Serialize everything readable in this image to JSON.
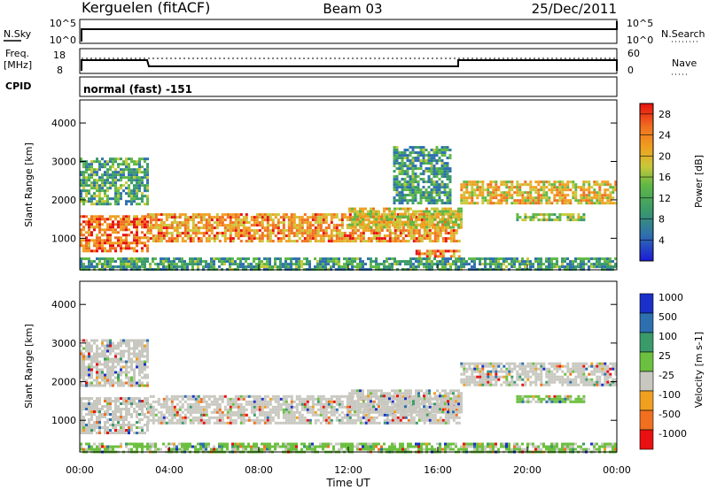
{
  "header": {
    "station": "Kerguelen (fitACF)",
    "beam": "Beam 03",
    "date": "25/Dec/2011"
  },
  "top_panels": {
    "nsky_label": "N.Sky",
    "nsky_ticks": [
      "10^5",
      "10^0"
    ],
    "nsearch_label": "N.Search",
    "nsearch_ticks": [
      "10^5",
      "10^0"
    ],
    "freq_label_1": "Freq.",
    "freq_label_2": "[MHz]",
    "freq_ticks": [
      "18",
      "8"
    ],
    "nave_label": "Nave",
    "nave_ticks": [
      "60",
      "0"
    ],
    "cpid_label": "CPID",
    "cpid_text": "normal (fast) -151"
  },
  "chart_data": [
    {
      "type": "heatmap",
      "name": "power",
      "ylabel": "Slant Range [km]",
      "ylim": [
        180,
        4600
      ],
      "yticks": [
        1000,
        2000,
        3000,
        4000
      ],
      "xlabel": "Time UT",
      "xlim_hours": [
        0,
        24
      ],
      "xticks": [
        "00:00",
        "04:00",
        "08:00",
        "12:00",
        "16:00",
        "20:00",
        "00:00"
      ],
      "colorbar": {
        "label": "Power [dB]",
        "ticks": [
          "4",
          "8",
          "12",
          "16",
          "20",
          "24",
          "28"
        ],
        "colors": [
          "#1a1ad6",
          "#2f6fb0",
          "#3a9a6a",
          "#5fb845",
          "#c8c83a",
          "#f0a020",
          "#f07020",
          "#e81010"
        ]
      },
      "regions": [
        {
          "t0": 0.0,
          "t1": 3.0,
          "r0": 700,
          "r1": 1600,
          "level": 0.85
        },
        {
          "t0": 0.0,
          "t1": 3.0,
          "r0": 1900,
          "r1": 3100,
          "level": 0.35
        },
        {
          "t0": 3.0,
          "t1": 17.0,
          "r0": 900,
          "r1": 1650,
          "level": 0.75
        },
        {
          "t0": 12.0,
          "t1": 17.0,
          "r0": 1250,
          "r1": 1800,
          "level": 0.6
        },
        {
          "t0": 14.0,
          "t1": 16.5,
          "r0": 1900,
          "r1": 3400,
          "level": 0.3
        },
        {
          "t0": 17.0,
          "t1": 24.0,
          "r0": 1900,
          "r1": 2500,
          "level": 0.65
        },
        {
          "t0": 19.5,
          "t1": 22.5,
          "r0": 1450,
          "r1": 1650,
          "level": 0.45
        },
        {
          "t0": 15.0,
          "t1": 17.0,
          "r0": 500,
          "r1": 700,
          "level": 0.8
        },
        {
          "t0": 0.0,
          "t1": 24.0,
          "r0": 180,
          "r1": 500,
          "level": 0.3
        }
      ]
    },
    {
      "type": "heatmap",
      "name": "velocity",
      "ylabel": "Slant Range [km]",
      "ylim": [
        180,
        4600
      ],
      "yticks": [
        1000,
        2000,
        3000,
        4000
      ],
      "xlabel": "Time UT",
      "xlim_hours": [
        0,
        24
      ],
      "xticks": [
        "00:00",
        "04:00",
        "08:00",
        "12:00",
        "16:00",
        "20:00",
        "00:00"
      ],
      "colorbar": {
        "label": "Velocity [m s-1]",
        "ticks": [
          "1000",
          "500",
          "100",
          "25",
          "-25",
          "-100",
          "-500",
          "-1000"
        ],
        "colors": [
          "#1a30c8",
          "#2e6fb0",
          "#3a9a6a",
          "#6cc040",
          "#c8c8c0",
          "#f0a020",
          "#f07020",
          "#e81010"
        ]
      },
      "regions": [
        {
          "t0": 0.0,
          "t1": 3.0,
          "r0": 700,
          "r1": 1600,
          "level": 0.5
        },
        {
          "t0": 0.0,
          "t1": 3.0,
          "r0": 1900,
          "r1": 3100,
          "level": 0.5
        },
        {
          "t0": 3.0,
          "t1": 17.0,
          "r0": 900,
          "r1": 1650,
          "level": 0.5
        },
        {
          "t0": 12.0,
          "t1": 17.0,
          "r0": 1250,
          "r1": 1800,
          "level": 0.5
        },
        {
          "t0": 17.0,
          "t1": 24.0,
          "r0": 1900,
          "r1": 2500,
          "level": 0.5
        },
        {
          "t0": 19.5,
          "t1": 22.5,
          "r0": 1450,
          "r1": 1650,
          "level": 0.3
        },
        {
          "t0": 0.0,
          "t1": 24.0,
          "r0": 180,
          "r1": 420,
          "level": 0.35
        }
      ]
    }
  ]
}
